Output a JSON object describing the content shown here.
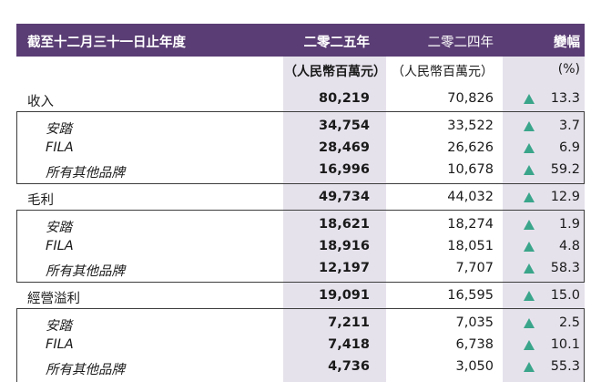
{
  "header": {
    "period_label": "截至十二月三十一日止年度",
    "col_2025": "二零二五年",
    "col_2024": "二零二四年",
    "col_change": "變幅"
  },
  "units": {
    "u2025": "（人民幣百萬元）",
    "u2024": "（人民幣百萬元）",
    "uchange": "(%)"
  },
  "sections": [
    {
      "total": {
        "label": "收入",
        "v2025": "80,219",
        "v2024": "70,826",
        "change": "13.3"
      },
      "items": [
        {
          "label": "安踏",
          "v2025": "34,754",
          "v2024": "33,522",
          "change": "3.7"
        },
        {
          "label": "FILA",
          "v2025": "28,469",
          "v2024": "26,626",
          "change": "6.9"
        },
        {
          "label": "所有其他品牌",
          "v2025": "16,996",
          "v2024": "10,678",
          "change": "59.2"
        }
      ]
    },
    {
      "total": {
        "label": "毛利",
        "v2025": "49,734",
        "v2024": "44,032",
        "change": "12.9"
      },
      "items": [
        {
          "label": "安踏",
          "v2025": "18,621",
          "v2024": "18,274",
          "change": "1.9"
        },
        {
          "label": "FILA",
          "v2025": "18,916",
          "v2024": "18,051",
          "change": "4.8"
        },
        {
          "label": "所有其他品牌",
          "v2025": "12,197",
          "v2024": "7,707",
          "change": "58.3"
        }
      ]
    },
    {
      "total": {
        "label": "經營溢利",
        "v2025": "19,091",
        "v2024": "16,595",
        "change": "15.0"
      },
      "items": [
        {
          "label": "安踏",
          "v2025": "7,211",
          "v2024": "7,035",
          "change": "2.5"
        },
        {
          "label": "FILA",
          "v2025": "7,418",
          "v2024": "6,738",
          "change": "10.1"
        },
        {
          "label": "所有其他品牌",
          "v2025": "4,736",
          "v2024": "3,050",
          "change": "55.3"
        }
      ]
    }
  ],
  "colors": {
    "header_bg": "#5a3d74",
    "shade": "#e6e2ec",
    "up_arrow": "#3aa58a"
  }
}
